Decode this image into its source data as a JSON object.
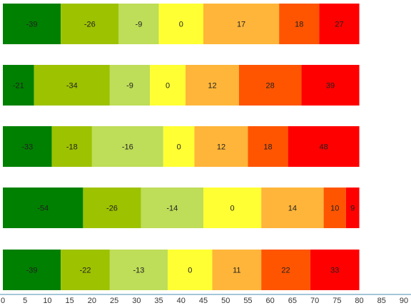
{
  "chart_data": {
    "type": "bar",
    "orientation": "horizontal",
    "stacked": true,
    "segment_colors": [
      "#008000",
      "#9dc200",
      "#bedd58",
      "#ffff33",
      "#ffb53a",
      "#ff5500",
      "#ff0000"
    ],
    "rows": [
      {
        "segments": [
          -39,
          -26,
          -9,
          0,
          17,
          18,
          27
        ],
        "widths": [
          13,
          13,
          9,
          10,
          17,
          9,
          9
        ]
      },
      {
        "segments": [
          -21,
          -34,
          -9,
          0,
          12,
          28,
          39
        ],
        "widths": [
          7,
          17,
          9,
          8,
          12,
          14,
          13
        ]
      },
      {
        "segments": [
          -33,
          -18,
          -16,
          0,
          12,
          18,
          48
        ],
        "widths": [
          11,
          9,
          16,
          7,
          12,
          9,
          16
        ]
      },
      {
        "segments": [
          -54,
          -26,
          -14,
          0,
          14,
          10,
          9
        ],
        "widths": [
          18,
          13,
          14,
          13,
          14,
          5,
          3
        ]
      },
      {
        "segments": [
          -39,
          -22,
          -13,
          0,
          11,
          22,
          33
        ],
        "widths": [
          13,
          11,
          13,
          10,
          11,
          11,
          11
        ]
      }
    ],
    "x_ticks": [
      0,
      5,
      10,
      15,
      20,
      25,
      30,
      35,
      40,
      45,
      50,
      55,
      60,
      65,
      70,
      75,
      80,
      85,
      90
    ],
    "xlim": [
      0,
      90
    ],
    "title": "",
    "xlabel": "",
    "ylabel": "",
    "grid": false,
    "legend": "none"
  }
}
